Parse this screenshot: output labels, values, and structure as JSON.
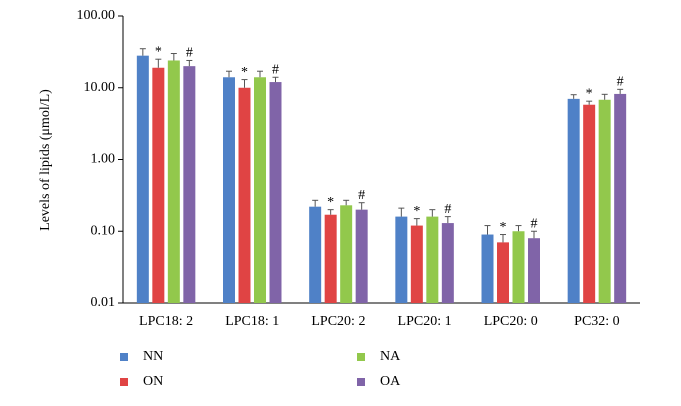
{
  "chart_data": {
    "type": "bar",
    "log_scale": true,
    "ylabel": "Levels of lipids (μmol/L)",
    "categories": [
      "LPC18: 2",
      "LPC18: 1",
      "LPC20: 2",
      "LPC20: 1",
      "LPC20: 0",
      "PC32: 0"
    ],
    "series": [
      {
        "name": "NN",
        "color": "#4f81c7",
        "values": [
          28,
          14,
          0.22,
          0.16,
          0.09,
          7
        ],
        "errors": [
          7,
          3,
          0.05,
          0.05,
          0.03,
          1
        ]
      },
      {
        "name": "ON",
        "color": "#e04444",
        "values": [
          19,
          10,
          0.17,
          0.12,
          0.07,
          5.8
        ],
        "errors": [
          6,
          3,
          0.03,
          0.03,
          0.02,
          0.7
        ],
        "annotations": [
          "*",
          "*",
          "*",
          "*",
          "*",
          "*"
        ]
      },
      {
        "name": "NA",
        "color": "#92c84c",
        "values": [
          24,
          14,
          0.23,
          0.16,
          0.1,
          6.8
        ],
        "errors": [
          6,
          3,
          0.04,
          0.04,
          0.02,
          1.3
        ]
      },
      {
        "name": "OA",
        "color": "#8064a8",
        "values": [
          20,
          12,
          0.2,
          0.13,
          0.08,
          8.2
        ],
        "errors": [
          4,
          2,
          0.05,
          0.03,
          0.02,
          1.3
        ],
        "annotations": [
          "#",
          "#",
          "#",
          "#",
          "#",
          "#"
        ]
      }
    ],
    "ylim": [
      0.01,
      100
    ],
    "yticks": [
      0.01,
      {
        "value": 0.1,
        "label": "0.10"
      },
      {
        "value": 1,
        "label": "1.00"
      },
      {
        "value": 10,
        "label": "10.00"
      },
      {
        "value": 100,
        "label": "100.00"
      }
    ]
  }
}
